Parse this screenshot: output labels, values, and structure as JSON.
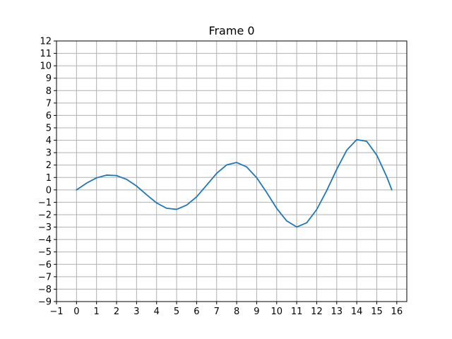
{
  "chart_data": {
    "type": "line",
    "title": "Frame 0",
    "xlabel": "",
    "ylabel": "",
    "xlim": [
      -1,
      16.5
    ],
    "ylim": [
      -9,
      12
    ],
    "xticks": [
      -1,
      0,
      1,
      2,
      3,
      4,
      5,
      6,
      7,
      8,
      9,
      10,
      11,
      12,
      13,
      14,
      15,
      16
    ],
    "yticks": [
      -9,
      -8,
      -7,
      -6,
      -5,
      -4,
      -3,
      -2,
      -1,
      0,
      1,
      2,
      3,
      4,
      5,
      6,
      7,
      8,
      9,
      10,
      11,
      12
    ],
    "xtick_labels": [
      "−1",
      "0",
      "1",
      "2",
      "3",
      "4",
      "5",
      "6",
      "7",
      "8",
      "9",
      "10",
      "11",
      "12",
      "13",
      "14",
      "15",
      "16"
    ],
    "ytick_labels": [
      "−9",
      "−8",
      "−7",
      "−6",
      "−5",
      "−4",
      "−3",
      "−2",
      "−1",
      "0",
      "1",
      "2",
      "3",
      "4",
      "5",
      "6",
      "7",
      "8",
      "9",
      "10",
      "11",
      "12"
    ],
    "grid": true,
    "series": [
      {
        "color": "#1f77b4",
        "x": [
          0,
          0.5,
          1,
          1.5,
          2,
          2.5,
          3,
          3.5,
          4,
          4.5,
          5,
          5.5,
          6,
          6.5,
          7,
          7.5,
          8,
          8.5,
          9,
          9.5,
          10,
          10.5,
          11,
          11.5,
          12,
          12.5,
          13,
          13.5,
          14,
          14.5,
          15,
          15.5,
          15.75
        ],
        "y": [
          0,
          0.54,
          0.97,
          1.19,
          1.15,
          0.85,
          0.31,
          -0.39,
          -1.05,
          -1.48,
          -1.57,
          -1.23,
          -0.56,
          0.38,
          1.33,
          2.01,
          2.21,
          1.85,
          0.98,
          -0.21,
          -1.49,
          -2.5,
          -2.99,
          -2.65,
          -1.58,
          -0.05,
          1.66,
          3.2,
          4.05,
          3.91,
          2.8,
          1.05,
          0
        ]
      }
    ]
  }
}
